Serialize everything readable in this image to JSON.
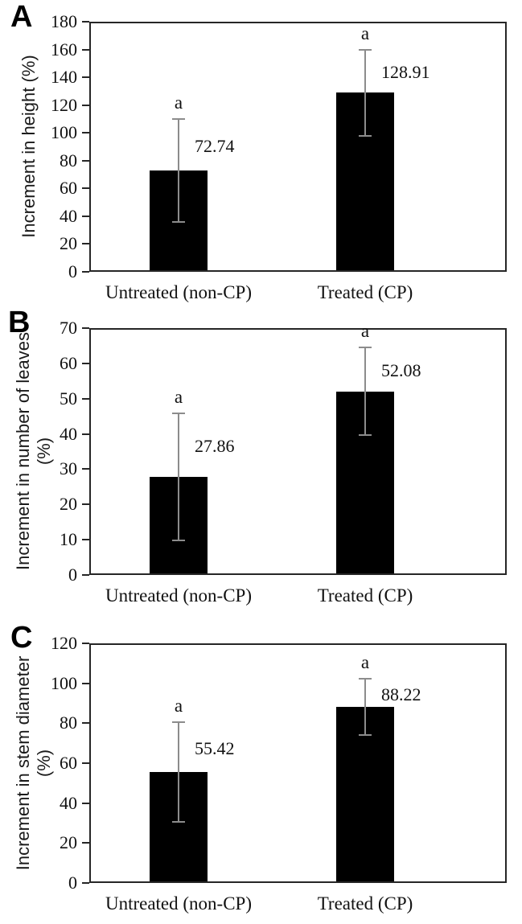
{
  "figure": {
    "background": "#ffffff",
    "frame_color": "#262626",
    "text_color": "#111111",
    "bar_color": "#000000",
    "error_bar_color": "#8c8c8c"
  },
  "chart_data": [
    {
      "type": "bar",
      "panel_label": "A",
      "ylabel": "Increment in height (%)",
      "ylabel_lines": [
        "Increment in height (%)"
      ],
      "categories": [
        "Untreated (non-CP)",
        "Treated (CP)"
      ],
      "values": [
        72.74,
        128.91
      ],
      "value_labels": [
        "72.74",
        "128.91"
      ],
      "errors": [
        37,
        31
      ],
      "significance_letters": [
        "a",
        "a"
      ],
      "ylim": [
        0,
        180
      ],
      "yticks": [
        0,
        20,
        40,
        60,
        80,
        100,
        120,
        140,
        160,
        180
      ],
      "grid": false,
      "legend": null
    },
    {
      "type": "bar",
      "panel_label": "B",
      "ylabel": "Increment in number of leaves (%)",
      "ylabel_lines": [
        "Increment in number of leaves",
        "(%)"
      ],
      "categories": [
        "Untreated (non-CP)",
        "Treated (CP)"
      ],
      "values": [
        27.86,
        52.08
      ],
      "value_labels": [
        "27.86",
        "52.08"
      ],
      "errors": [
        18,
        12.4
      ],
      "significance_letters": [
        "a",
        "a"
      ],
      "ylim": [
        0,
        70
      ],
      "yticks": [
        0,
        10,
        20,
        30,
        40,
        50,
        60,
        70
      ],
      "grid": false,
      "legend": null
    },
    {
      "type": "bar",
      "panel_label": "C",
      "ylabel": "Increment in stem diameter (%)",
      "ylabel_lines": [
        "Increment in stem diameter",
        "(%)"
      ],
      "categories": [
        "Untreated (non-CP)",
        "Treated (CP)"
      ],
      "values": [
        55.42,
        88.22
      ],
      "value_labels": [
        "55.42",
        "88.22"
      ],
      "errors": [
        25,
        14
      ],
      "significance_letters": [
        "a",
        "a"
      ],
      "ylim": [
        0,
        120
      ],
      "yticks": [
        0,
        20,
        40,
        60,
        80,
        100,
        120
      ],
      "grid": false,
      "legend": null
    }
  ]
}
